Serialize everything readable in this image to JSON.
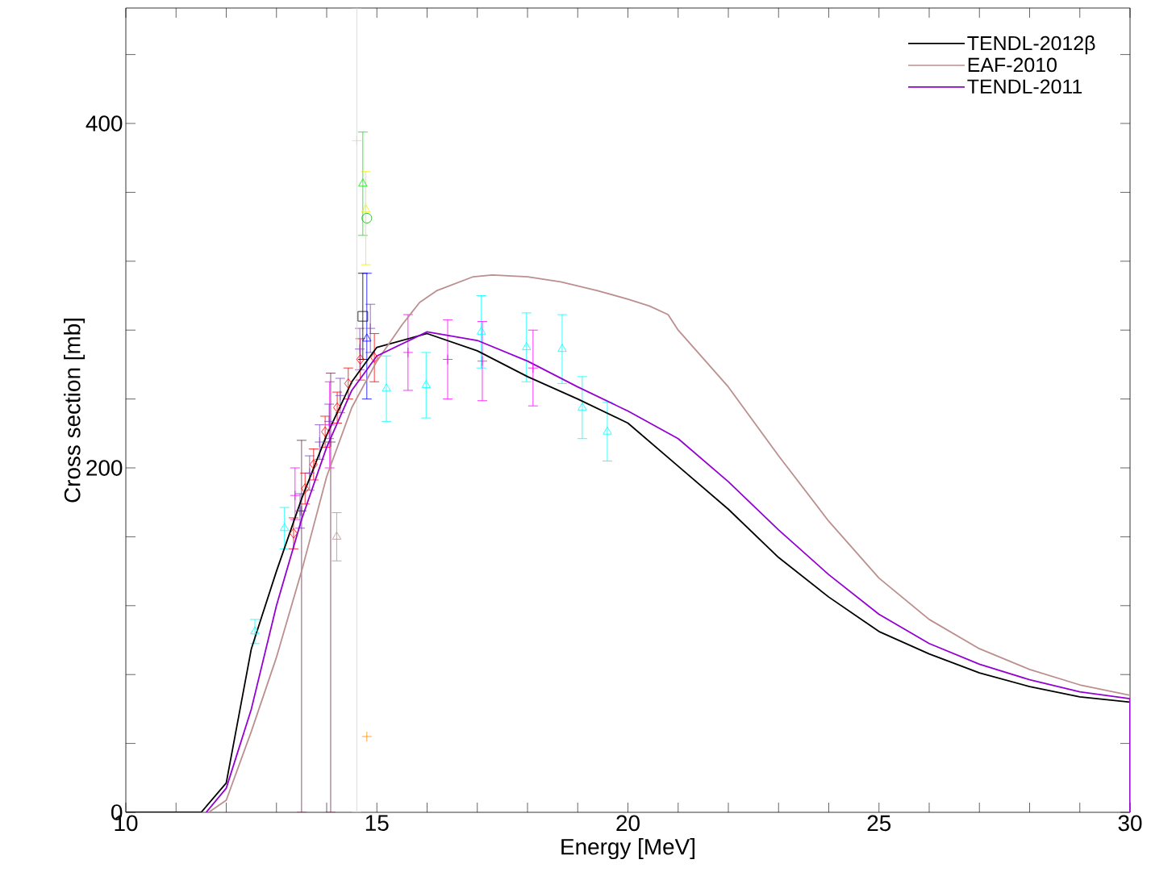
{
  "chart_data": {
    "type": "line",
    "xlabel": "Energy [MeV]",
    "ylabel": "Cross section [mb]",
    "xlim": [
      10,
      30
    ],
    "ylim": [
      0,
      467
    ],
    "xticks": [
      10,
      {
        "value": 11,
        "label": null
      },
      {
        "value": 12,
        "label": null
      },
      {
        "value": 13,
        "label": null
      },
      {
        "value": 14,
        "label": null
      },
      15,
      {
        "value": 16,
        "label": null
      },
      {
        "value": 17,
        "label": null
      },
      {
        "value": 18,
        "label": null
      },
      {
        "value": 19,
        "label": null
      },
      20,
      {
        "value": 21,
        "label": null
      },
      {
        "value": 22,
        "label": null
      },
      {
        "value": 23,
        "label": null
      },
      {
        "value": 24,
        "label": null
      },
      25,
      {
        "value": 26,
        "label": null
      },
      {
        "value": 27,
        "label": null
      },
      {
        "value": 28,
        "label": null
      },
      {
        "value": 29,
        "label": null
      },
      30
    ],
    "yticks": [
      0,
      {
        "value": 40,
        "label": null
      },
      {
        "value": 80,
        "label": null
      },
      {
        "value": 120,
        "label": null
      },
      {
        "value": 160,
        "label": null
      },
      200,
      {
        "value": 240,
        "label": null
      },
      {
        "value": 280,
        "label": null
      },
      {
        "value": 320,
        "label": null
      },
      {
        "value": 360,
        "label": null
      },
      400,
      {
        "value": 440,
        "label": null
      }
    ],
    "grid": false,
    "legend": "top right",
    "series": [
      {
        "name": "TENDL-2012β",
        "type": "line",
        "color": "#000000",
        "x": [
          10,
          11.5,
          12,
          12.5,
          13,
          13.5,
          14,
          14.5,
          15,
          16,
          17,
          18,
          19,
          20,
          21,
          22,
          23,
          24,
          25,
          26,
          27,
          28,
          29,
          30,
          30
        ],
        "values": [
          0,
          0,
          17,
          95,
          140,
          182,
          219,
          250,
          270,
          278,
          268,
          253,
          240,
          226,
          201,
          176,
          148,
          125,
          105,
          92,
          81,
          73,
          67,
          64,
          0
        ]
      },
      {
        "name": "EAF-2010",
        "type": "line",
        "color": "#bc8f8f",
        "x": [
          11.65,
          12,
          12.5,
          13,
          13.5,
          14,
          14.5,
          15,
          15.5,
          15.85,
          16.2,
          16.92,
          17.3,
          18,
          18.66,
          19.38,
          20,
          20.43,
          20.8,
          21,
          22,
          23,
          24,
          25,
          26,
          27,
          28,
          29,
          30,
          30
        ],
        "values": [
          0,
          7,
          47,
          90,
          140,
          195,
          235,
          262,
          283,
          296,
          303,
          311,
          312,
          311,
          308,
          303,
          298,
          294,
          289,
          280,
          247,
          207,
          169,
          136,
          112,
          95,
          83,
          74,
          68,
          0
        ]
      },
      {
        "name": "TENDL-2011",
        "type": "line",
        "color": "#9400d3",
        "x": [
          11.6,
          12,
          12.5,
          13,
          13.5,
          14,
          14.5,
          15,
          16,
          17,
          18,
          19,
          20,
          21,
          22,
          23,
          24,
          25,
          26,
          27,
          28,
          29,
          30,
          30
        ],
        "values": [
          0,
          14,
          60,
          120,
          170,
          212,
          245,
          265,
          279,
          274,
          262,
          247,
          233,
          217,
          192,
          164,
          138,
          115,
          98,
          86,
          77,
          70,
          66,
          0
        ]
      },
      {
        "type": "scatter",
        "marker": "triangle",
        "color": "#00ffff",
        "x": [
          12.57,
          13.16,
          15.19,
          15.98,
          17.08,
          17.98,
          18.69,
          19.09,
          19.59
        ],
        "values": [
          105,
          165,
          246,
          248,
          279,
          270,
          269,
          235,
          221
        ],
        "errors": [
          [
            98,
            112
          ],
          [
            153,
            177
          ],
          [
            227,
            265
          ],
          [
            229,
            267
          ],
          [
            258,
            300
          ],
          [
            250,
            290
          ],
          [
            249,
            289
          ],
          [
            217,
            253
          ],
          [
            204,
            238
          ]
        ]
      },
      {
        "type": "scatter",
        "marker": "cross",
        "color": "#ff00ff",
        "x": [
          13.37,
          14.06,
          15.62,
          16.41,
          17.1,
          18.11
        ],
        "values": [
          184,
          225,
          267,
          263,
          262,
          258
        ],
        "errors": [
          [
            170,
            200
          ],
          [
            200,
            250
          ],
          [
            245,
            289
          ],
          [
            240,
            286
          ],
          [
            239,
            285
          ],
          [
            236,
            280
          ]
        ]
      },
      {
        "type": "scatter",
        "marker": "diamond",
        "color": "#ff0000",
        "x": [
          13.34,
          13.57,
          13.74,
          13.97,
          14.21,
          14.43,
          14.67,
          14.95
        ],
        "values": [
          162,
          188,
          202,
          221,
          235,
          249,
          263,
          264
        ],
        "errors": [
          9,
          9,
          9,
          9,
          9,
          9,
          12,
          14
        ]
      },
      {
        "type": "scatter",
        "marker": "cross",
        "color": "#7f3fbf",
        "x": [
          13.47,
          13.66,
          13.86,
          14.05,
          14.27,
          14.66,
          14.87
        ],
        "values": [
          175,
          197,
          215,
          227,
          242,
          269,
          281
        ],
        "errors": [
          10,
          10,
          10,
          10,
          10,
          12,
          14
        ]
      },
      {
        "type": "scatter",
        "marker": "cross",
        "color": "#6b2a4a",
        "x": [
          13.5,
          14.08
        ],
        "values": [
          175,
          215
        ],
        "errors": [
          [
            0,
            216
          ],
          [
            0,
            255
          ]
        ]
      },
      {
        "type": "scatter",
        "marker": "cross",
        "color": "#d3d3d3",
        "x": [
          14.6
        ],
        "values": [
          390
        ],
        "errors": [
          [
            0,
            467
          ]
        ]
      },
      {
        "type": "scatter",
        "marker": "triangle",
        "color": "#00ee00",
        "x": [
          14.72
        ],
        "values": [
          365
        ],
        "errors": [
          [
            335,
            395
          ]
        ]
      },
      {
        "type": "scatter",
        "marker": "circle",
        "color": "#00aa00",
        "x": [
          14.8
        ],
        "values": [
          345
        ]
      },
      {
        "type": "scatter",
        "marker": "triangle",
        "color": "#eeee00",
        "x": [
          14.78
        ],
        "values": [
          350
        ],
        "errors": [
          [
            318,
            372
          ]
        ]
      },
      {
        "type": "scatter",
        "marker": "square",
        "color": "#000000",
        "x": [
          14.72
        ],
        "values": [
          288
        ],
        "errors": [
          [
            263,
            313
          ]
        ]
      },
      {
        "type": "scatter",
        "marker": "triangle",
        "color": "#0000ff",
        "x": [
          14.8
        ],
        "values": [
          275
        ],
        "errors": [
          [
            240,
            313
          ]
        ]
      },
      {
        "type": "scatter",
        "marker": "triangle",
        "color": "#bc8f8f",
        "x": [
          14.2
        ],
        "values": [
          160
        ],
        "errors": [
          [
            146,
            174
          ]
        ]
      },
      {
        "type": "scatter",
        "marker": "cross",
        "color": "#ff8c00",
        "x": [
          14.8
        ],
        "values": [
          44
        ]
      }
    ]
  }
}
